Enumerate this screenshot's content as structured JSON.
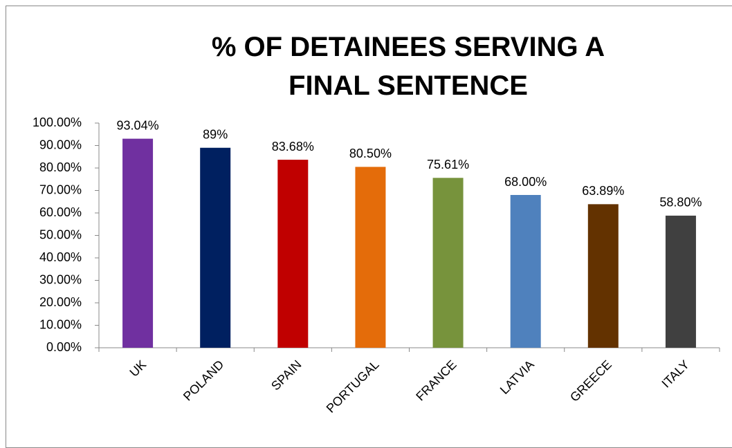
{
  "chart_data": {
    "type": "bar",
    "title": "% OF DETAINEES SERVING A FINAL SENTENCE",
    "categories": [
      "UK",
      "POLAND",
      "SPAIN",
      "PORTUGAL",
      "FRANCE",
      "LATVIA",
      "GREECE",
      "ITALY"
    ],
    "values": [
      93.04,
      89,
      83.68,
      80.5,
      75.61,
      68,
      63.89,
      58.8
    ],
    "value_labels": [
      "93.04%",
      "89%",
      "83.68%",
      "80.50%",
      "75.61%",
      "68.00%",
      "63.89%",
      "58.80%"
    ],
    "colors": [
      "#7030a0",
      "#002060",
      "#c00000",
      "#e46c0a",
      "#77933c",
      "#4f81bd",
      "#633200",
      "#404040"
    ],
    "ylim": [
      0,
      100
    ],
    "yticks": [
      {
        "value": 0,
        "label": "0.00%"
      },
      {
        "value": 10,
        "label": "10.00%"
      },
      {
        "value": 20,
        "label": "20.00%"
      },
      {
        "value": 30,
        "label": "30.00%"
      },
      {
        "value": 40,
        "label": "40.00%"
      },
      {
        "value": 50,
        "label": "50.00%"
      },
      {
        "value": 60,
        "label": "60.00%"
      },
      {
        "value": 70,
        "label": "70.00%"
      },
      {
        "value": 80,
        "label": "80.00%"
      },
      {
        "value": 90,
        "label": "90.00%"
      },
      {
        "value": 100,
        "label": "100.00%"
      }
    ],
    "grid": false
  }
}
